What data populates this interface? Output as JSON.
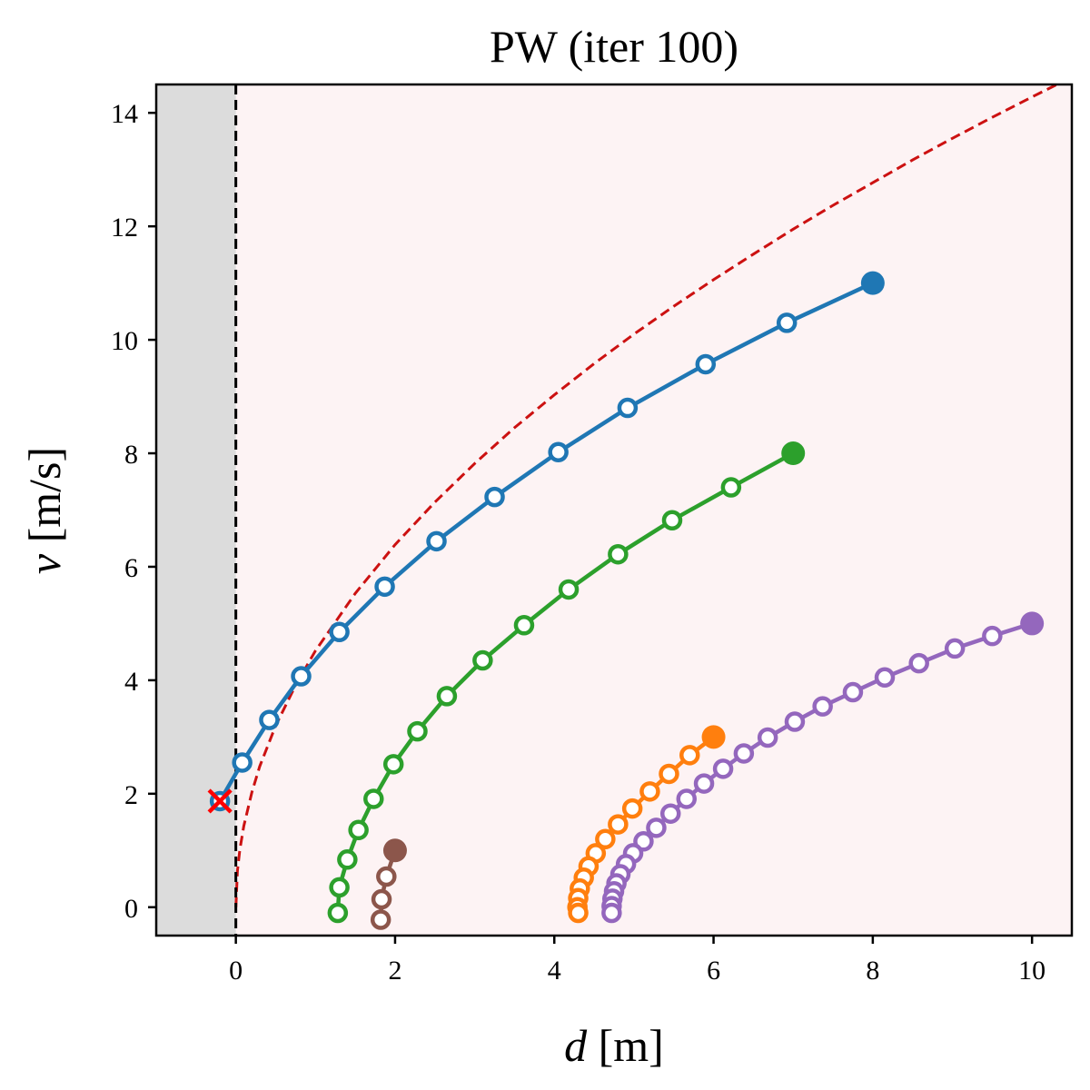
{
  "chart_data": {
    "type": "line",
    "title": "PW (iter 100)",
    "xlabel_symbol": "d",
    "xlabel_unit": " [m]",
    "ylabel_symbol": "v",
    "ylabel_unit": " [m/s]",
    "xlim": [
      -1.0,
      10.5
    ],
    "ylim": [
      -0.5,
      14.5
    ],
    "xticks": [
      0,
      2,
      4,
      6,
      8,
      10
    ],
    "yticks": [
      0,
      2,
      4,
      6,
      8,
      10,
      12,
      14
    ],
    "grid": false,
    "legend": "none",
    "forbidden_region": {
      "x_from": -1.0,
      "x_to": 0.0,
      "color": "#dcdcdc"
    },
    "safe_region_color": "#fdf3f4",
    "boundary_vertical": {
      "x": 0,
      "color": "#000000",
      "style": "dashed"
    },
    "boundary_curve": {
      "color": "#cc1111",
      "style": "dashed",
      "x": [
        0,
        0.02,
        0.05,
        0.1,
        0.2,
        0.3,
        0.5,
        0.75,
        1.0,
        1.5,
        2.0,
        2.5,
        3.0,
        3.5,
        4.0,
        4.5,
        5.0,
        5.5,
        6.0,
        6.5,
        7.0,
        7.5,
        8.0,
        8.5,
        9.0,
        9.5,
        10.0,
        10.5
      ],
      "y": [
        0,
        0.64,
        1.01,
        1.43,
        2.02,
        2.48,
        3.2,
        3.91,
        4.52,
        5.53,
        6.39,
        7.14,
        7.82,
        8.45,
        9.03,
        9.58,
        10.1,
        10.59,
        11.06,
        11.51,
        11.95,
        12.37,
        12.77,
        13.17,
        13.55,
        13.92,
        14.28,
        14.63
      ]
    },
    "series": [
      {
        "color": "#1f77b4",
        "start": [
          8.0,
          11.0
        ],
        "x": [
          8.0,
          6.92,
          5.9,
          4.92,
          4.05,
          3.25,
          2.52,
          1.87,
          1.3,
          0.82,
          0.42,
          0.08,
          -0.2
        ],
        "y": [
          11.0,
          10.3,
          9.57,
          8.8,
          8.02,
          7.23,
          6.45,
          5.65,
          4.85,
          4.07,
          3.3,
          2.55,
          1.87
        ],
        "violation": [
          -0.2,
          1.87
        ]
      },
      {
        "color": "#2ca02c",
        "start": [
          7.0,
          8.0
        ],
        "x": [
          7.0,
          6.22,
          5.48,
          4.8,
          4.18,
          3.62,
          3.1,
          2.65,
          2.28,
          1.98,
          1.73,
          1.54,
          1.4,
          1.3,
          1.28
        ],
        "y": [
          8.0,
          7.4,
          6.82,
          6.22,
          5.6,
          4.97,
          4.35,
          3.72,
          3.1,
          2.52,
          1.91,
          1.36,
          0.84,
          0.35,
          -0.1
        ]
      },
      {
        "color": "#ff7f0e",
        "start": [
          6.0,
          3.0
        ],
        "x": [
          6.0,
          5.7,
          5.44,
          5.2,
          4.98,
          4.8,
          4.64,
          4.52,
          4.43,
          4.37,
          4.32,
          4.3,
          4.29,
          4.3
        ],
        "y": [
          3.0,
          2.68,
          2.35,
          2.04,
          1.74,
          1.46,
          1.2,
          0.95,
          0.72,
          0.52,
          0.33,
          0.16,
          0.0,
          -0.1
        ]
      },
      {
        "color": "#9467bd",
        "start": [
          10.0,
          5.0
        ],
        "x": [
          10.0,
          9.5,
          9.03,
          8.58,
          8.15,
          7.75,
          7.37,
          7.02,
          6.68,
          6.38,
          6.12,
          5.88,
          5.66,
          5.46,
          5.28,
          5.12,
          4.99,
          4.9,
          4.83,
          4.78,
          4.75,
          4.73,
          4.72,
          4.72
        ],
        "y": [
          5.0,
          4.78,
          4.56,
          4.3,
          4.05,
          3.79,
          3.54,
          3.27,
          2.99,
          2.71,
          2.44,
          2.18,
          1.91,
          1.65,
          1.4,
          1.16,
          0.95,
          0.76,
          0.58,
          0.42,
          0.28,
          0.15,
          0.02,
          -0.1
        ]
      },
      {
        "color": "#8c564b",
        "start": [
          2.0,
          1.0
        ],
        "x": [
          2.0,
          1.89,
          1.83,
          1.82
        ],
        "y": [
          1.0,
          0.54,
          0.14,
          -0.22
        ]
      }
    ]
  }
}
